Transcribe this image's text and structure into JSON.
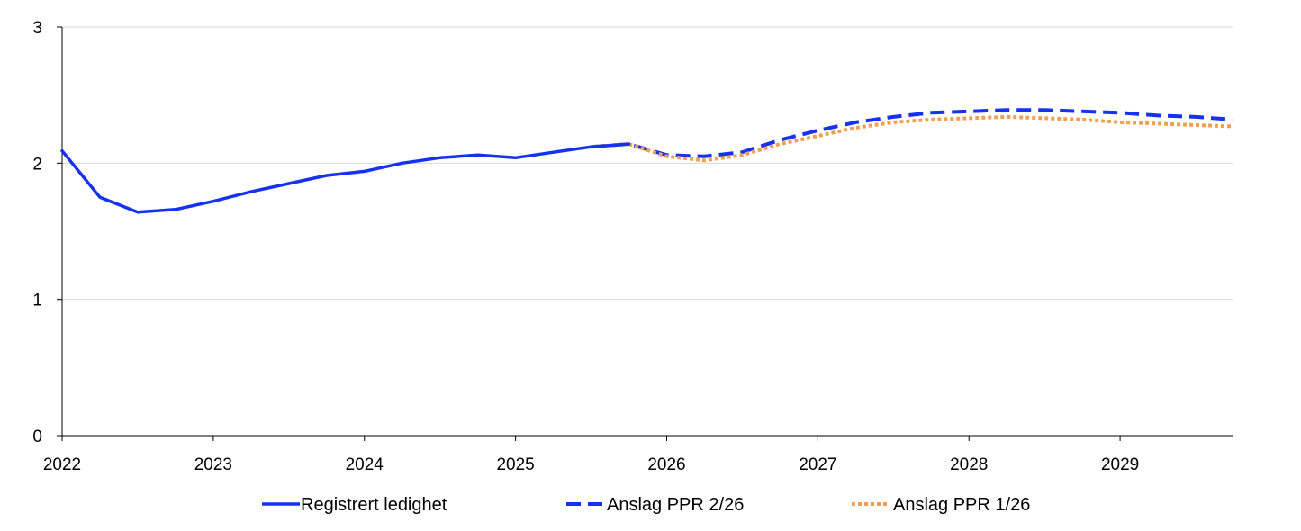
{
  "chart_data": {
    "type": "line",
    "title": "",
    "xlabel": "",
    "ylabel": "",
    "xlim": [
      2022,
      2029.75
    ],
    "ylim": [
      0,
      3
    ],
    "x_ticks": [
      {
        "value": 2022,
        "label": "2022"
      },
      {
        "value": 2023,
        "label": "2023"
      },
      {
        "value": 2024,
        "label": "2024"
      },
      {
        "value": 2025,
        "label": "2025"
      },
      {
        "value": 2026,
        "label": "2026"
      },
      {
        "value": 2027,
        "label": "2027"
      },
      {
        "value": 2028,
        "label": "2028"
      },
      {
        "value": 2029,
        "label": "2029"
      }
    ],
    "y_ticks": [
      {
        "value": 0,
        "label": "0"
      },
      {
        "value": 1,
        "label": "1"
      },
      {
        "value": 2,
        "label": "2"
      },
      {
        "value": 3,
        "label": "3"
      }
    ],
    "grid": "horizontal",
    "legend_position": "bottom",
    "series": [
      {
        "name": "Registrert ledighet",
        "color": "#1432f0",
        "style": "solid",
        "points": [
          [
            2022.0,
            2.09
          ],
          [
            2022.25,
            1.75
          ],
          [
            2022.5,
            1.64
          ],
          [
            2022.75,
            1.66
          ],
          [
            2023.0,
            1.72
          ],
          [
            2023.25,
            1.79
          ],
          [
            2023.5,
            1.85
          ],
          [
            2023.75,
            1.91
          ],
          [
            2024.0,
            1.94
          ],
          [
            2024.25,
            2.0
          ],
          [
            2024.5,
            2.04
          ],
          [
            2024.75,
            2.06
          ],
          [
            2025.0,
            2.04
          ],
          [
            2025.25,
            2.08
          ],
          [
            2025.5,
            2.12
          ],
          [
            2025.75,
            2.14
          ]
        ]
      },
      {
        "name": "Anslag PPR 2/26",
        "color": "#1432f0",
        "style": "dashed",
        "points": [
          [
            2025.5,
            2.12
          ],
          [
            2025.75,
            2.14
          ],
          [
            2026.0,
            2.06
          ],
          [
            2026.25,
            2.05
          ],
          [
            2026.5,
            2.08
          ],
          [
            2026.75,
            2.17
          ],
          [
            2027.0,
            2.24
          ],
          [
            2027.25,
            2.3
          ],
          [
            2027.5,
            2.34
          ],
          [
            2027.75,
            2.37
          ],
          [
            2028.0,
            2.38
          ],
          [
            2028.25,
            2.39
          ],
          [
            2028.5,
            2.39
          ],
          [
            2028.75,
            2.38
          ],
          [
            2029.0,
            2.37
          ],
          [
            2029.25,
            2.35
          ],
          [
            2029.5,
            2.34
          ],
          [
            2029.75,
            2.32
          ]
        ]
      },
      {
        "name": "Anslag PPR 1/26",
        "color": "#f0a050",
        "style": "dotted",
        "points": [
          [
            2025.5,
            2.12
          ],
          [
            2025.75,
            2.14
          ],
          [
            2026.0,
            2.05
          ],
          [
            2026.25,
            2.02
          ],
          [
            2026.5,
            2.06
          ],
          [
            2026.75,
            2.14
          ],
          [
            2027.0,
            2.2
          ],
          [
            2027.25,
            2.26
          ],
          [
            2027.5,
            2.3
          ],
          [
            2027.75,
            2.32
          ],
          [
            2028.0,
            2.33
          ],
          [
            2028.25,
            2.34
          ],
          [
            2028.5,
            2.33
          ],
          [
            2028.75,
            2.32
          ],
          [
            2029.0,
            2.3
          ],
          [
            2029.25,
            2.29
          ],
          [
            2029.5,
            2.28
          ],
          [
            2029.75,
            2.27
          ]
        ]
      }
    ]
  }
}
